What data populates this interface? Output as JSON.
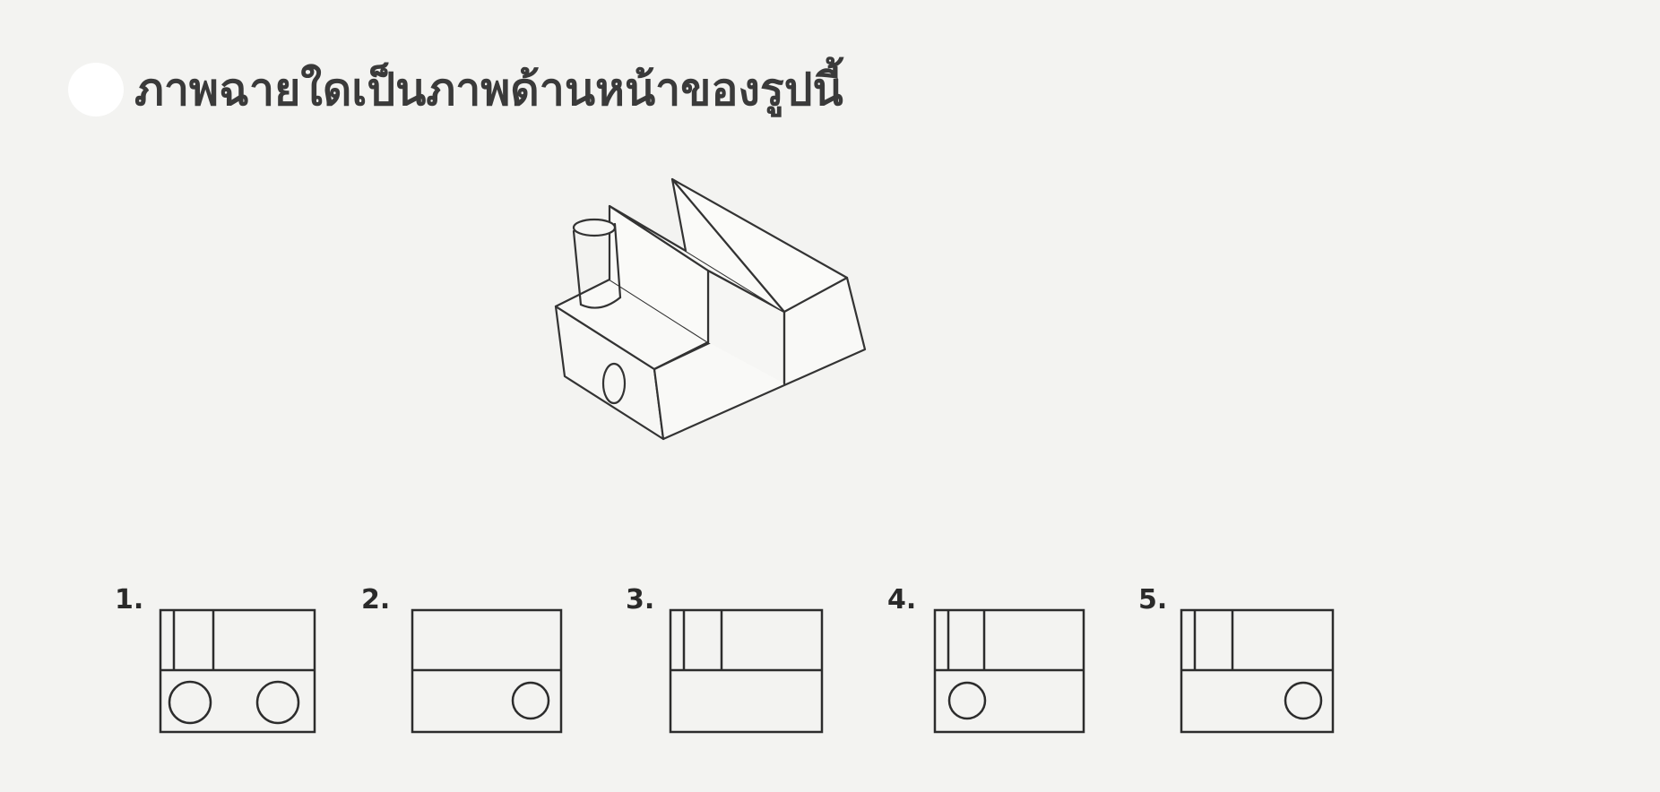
{
  "question": {
    "text": "ภาพฉายใดเป็นภาพด้านหน้าของรูปนี้"
  },
  "options": [
    {
      "number": "1.",
      "vertical_lines": true,
      "circles": "both"
    },
    {
      "number": "2.",
      "vertical_lines": false,
      "circles": "right"
    },
    {
      "number": "3.",
      "vertical_lines": true,
      "circles": "none"
    },
    {
      "number": "4.",
      "vertical_lines": true,
      "circles": "left"
    },
    {
      "number": "5.",
      "vertical_lines": true,
      "circles": "right"
    }
  ]
}
